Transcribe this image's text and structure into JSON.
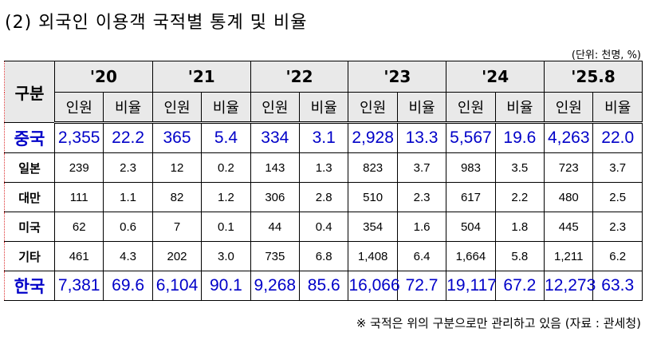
{
  "title": "(2) 외국인 이용객 국적별 통계 및 비율",
  "unit": "(단위: 천명, %)",
  "table": {
    "corner": "구분",
    "years": [
      "'20",
      "'21",
      "'22",
      "'23",
      "'24",
      "'25.8"
    ],
    "sub": [
      "인원",
      "비율"
    ],
    "rows": [
      {
        "label": "중국",
        "highlight": true,
        "values": [
          "2,355",
          "22.2",
          "365",
          "5.4",
          "334",
          "3.1",
          "2,928",
          "13.3",
          "5,567",
          "19.6",
          "4,263",
          "22.0"
        ]
      },
      {
        "label": "일본",
        "highlight": false,
        "values": [
          "239",
          "2.3",
          "12",
          "0.2",
          "143",
          "1.3",
          "823",
          "3.7",
          "983",
          "3.5",
          "723",
          "3.7"
        ]
      },
      {
        "label": "대만",
        "highlight": false,
        "values": [
          "111",
          "1.1",
          "82",
          "1.2",
          "306",
          "2.8",
          "510",
          "2.3",
          "617",
          "2.2",
          "480",
          "2.5"
        ]
      },
      {
        "label": "미국",
        "highlight": false,
        "values": [
          "62",
          "0.6",
          "7",
          "0.1",
          "44",
          "0.4",
          "354",
          "1.6",
          "504",
          "1.8",
          "445",
          "2.3"
        ]
      },
      {
        "label": "기타",
        "highlight": false,
        "values": [
          "461",
          "4.3",
          "202",
          "3.0",
          "735",
          "6.8",
          "1,408",
          "6.4",
          "1,664",
          "5.8",
          "1,211",
          "6.2"
        ]
      },
      {
        "label": "한국",
        "highlight": true,
        "values": [
          "7,381",
          "69.6",
          "6,104",
          "90.1",
          "9,268",
          "85.6",
          "16,066",
          "72.7",
          "19,117",
          "67.2",
          "12,273",
          "63.3"
        ]
      }
    ]
  },
  "note": "※ 국적은 위의 구분으로만 관리하고 있음 (자료 : 관세청)",
  "colors": {
    "highlight": "#0000c8",
    "header_bg": "#e9e9e9"
  }
}
